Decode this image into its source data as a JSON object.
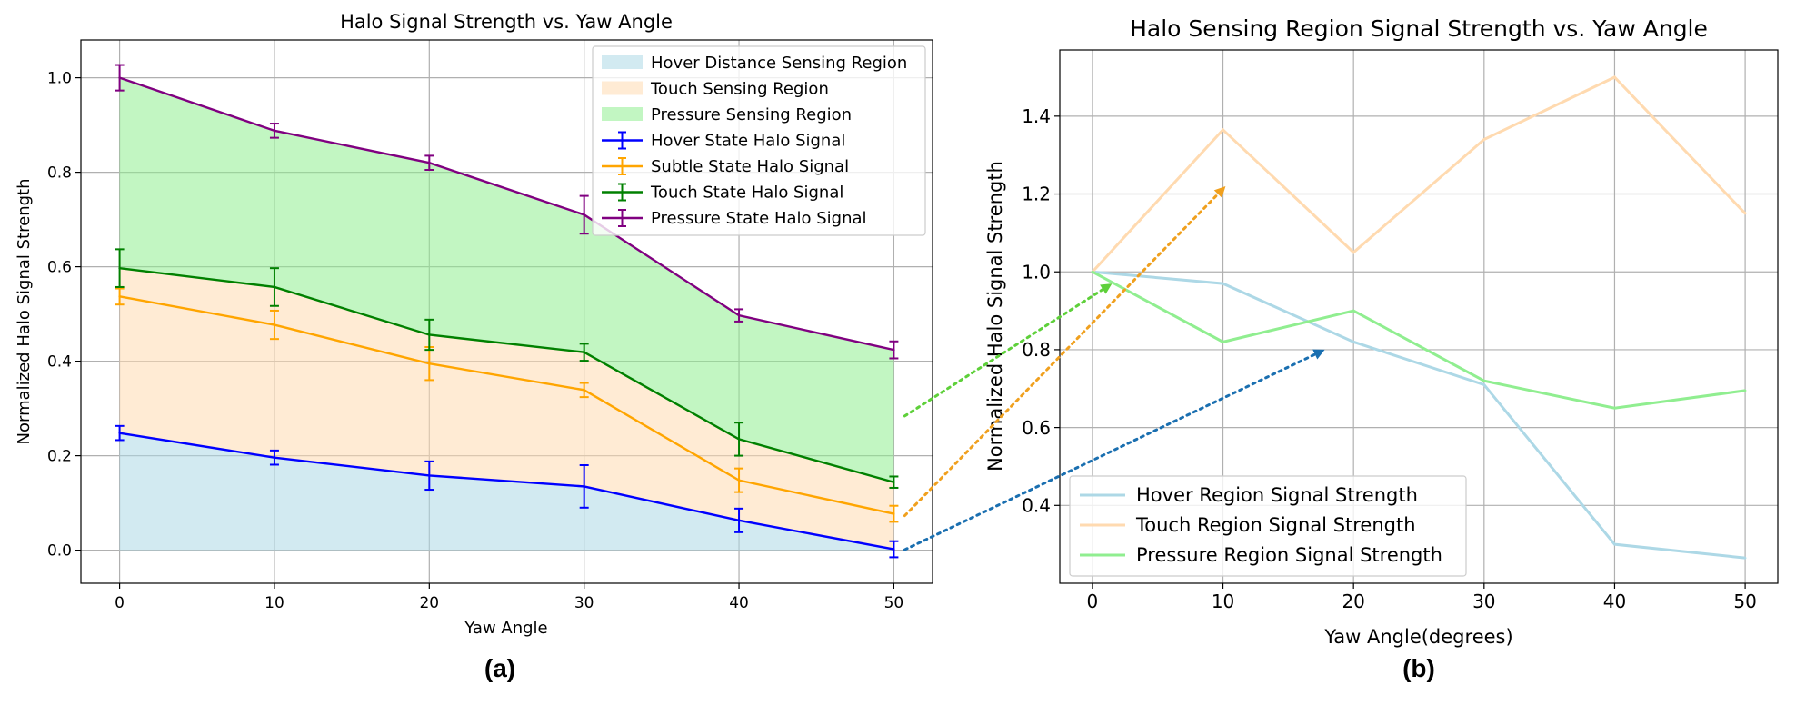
{
  "chart_data": [
    {
      "type": "line",
      "panel_label": "(a)",
      "title": "Halo Signal Strength vs. Yaw Angle",
      "xlabel": "Yaw Angle",
      "ylabel": "Normalized Halo Signal Strength",
      "x": [
        0,
        10,
        20,
        30,
        40,
        50
      ],
      "xlim": [
        -2.5,
        52.5
      ],
      "ylim": [
        -0.07,
        1.08
      ],
      "xticks": [
        "0",
        "10",
        "20",
        "30",
        "40",
        "50"
      ],
      "yticks": [
        "0.0",
        "0.2",
        "0.4",
        "0.6",
        "0.8",
        "1.0"
      ],
      "grid": true,
      "legend_position": "top-right",
      "regions": [
        {
          "name": "Hover Distance Sensing Region",
          "lower": "zero",
          "upper": "Hover State Halo Signal",
          "color": "#add8e6"
        },
        {
          "name": "Touch Sensing Region",
          "lower": "Hover State Halo Signal",
          "upper": "Touch State Halo Signal",
          "color": "#ffdab0"
        },
        {
          "name": "Pressure Sensing Region",
          "lower": "Touch State Halo Signal",
          "upper": "Pressure State Halo Signal",
          "color": "#90ee90"
        }
      ],
      "series": [
        {
          "name": "Hover State Halo Signal",
          "color": "#0000ff",
          "values": [
            0.248,
            0.196,
            0.158,
            0.135,
            0.063,
            0.002
          ],
          "errors": [
            0.015,
            0.015,
            0.03,
            0.045,
            0.025,
            0.017
          ]
        },
        {
          "name": "Subtle State Halo Signal",
          "color": "#ffa500",
          "values": [
            0.537,
            0.477,
            0.395,
            0.339,
            0.148,
            0.077
          ],
          "errors": [
            0.017,
            0.03,
            0.035,
            0.015,
            0.025,
            0.017
          ]
        },
        {
          "name": "Touch State Halo Signal",
          "color": "#008000",
          "values": [
            0.597,
            0.557,
            0.456,
            0.419,
            0.235,
            0.144
          ],
          "errors": [
            0.04,
            0.04,
            0.032,
            0.018,
            0.035,
            0.012
          ]
        },
        {
          "name": "Pressure State Halo Signal",
          "color": "#800080",
          "values": [
            1.0,
            0.888,
            0.82,
            0.71,
            0.497,
            0.424
          ],
          "errors": [
            0.027,
            0.015,
            0.015,
            0.04,
            0.013,
            0.018
          ]
        }
      ]
    },
    {
      "type": "line",
      "panel_label": "(b)",
      "title": "Halo Sensing Region Signal Strength vs. Yaw Angle",
      "xlabel": "Yaw Angle(degrees)",
      "ylabel": "Normalized Halo Signal Strength",
      "x": [
        0,
        10,
        20,
        30,
        40,
        50
      ],
      "xlim": [
        -2.5,
        52.5
      ],
      "ylim": [
        0.2,
        1.57
      ],
      "xticks": [
        "0",
        "10",
        "20",
        "30",
        "40",
        "50"
      ],
      "yticks": [
        "0.4",
        "0.6",
        "0.8",
        "1.0",
        "1.2",
        "1.4"
      ],
      "grid": true,
      "legend_position": "bottom-left",
      "series": [
        {
          "name": "Hover Region Signal Strength",
          "color": "#add8e6",
          "values": [
            1.0,
            0.97,
            0.82,
            0.71,
            0.3,
            0.265
          ]
        },
        {
          "name": "Touch Region Signal Strength",
          "color": "#ffdab0",
          "values": [
            1.0,
            1.365,
            1.05,
            1.34,
            1.5,
            1.15
          ]
        },
        {
          "name": "Pressure Region Signal Strength",
          "color": "#90ee90",
          "values": [
            1.0,
            0.82,
            0.9,
            0.72,
            0.65,
            0.695
          ]
        }
      ]
    }
  ],
  "connectors": [
    {
      "from_chart": 0,
      "from_region": "Pressure Sensing Region",
      "to_series": "Pressure Region Signal Strength",
      "color": "#5ed03a"
    },
    {
      "from_chart": 0,
      "from_region": "Touch Sensing Region",
      "to_series": "Touch Region Signal Strength",
      "color": "#f0a01e"
    },
    {
      "from_chart": 0,
      "from_region": "Hover Distance Sensing Region",
      "to_series": "Hover Region Signal Strength",
      "color": "#1a6fb0"
    }
  ]
}
